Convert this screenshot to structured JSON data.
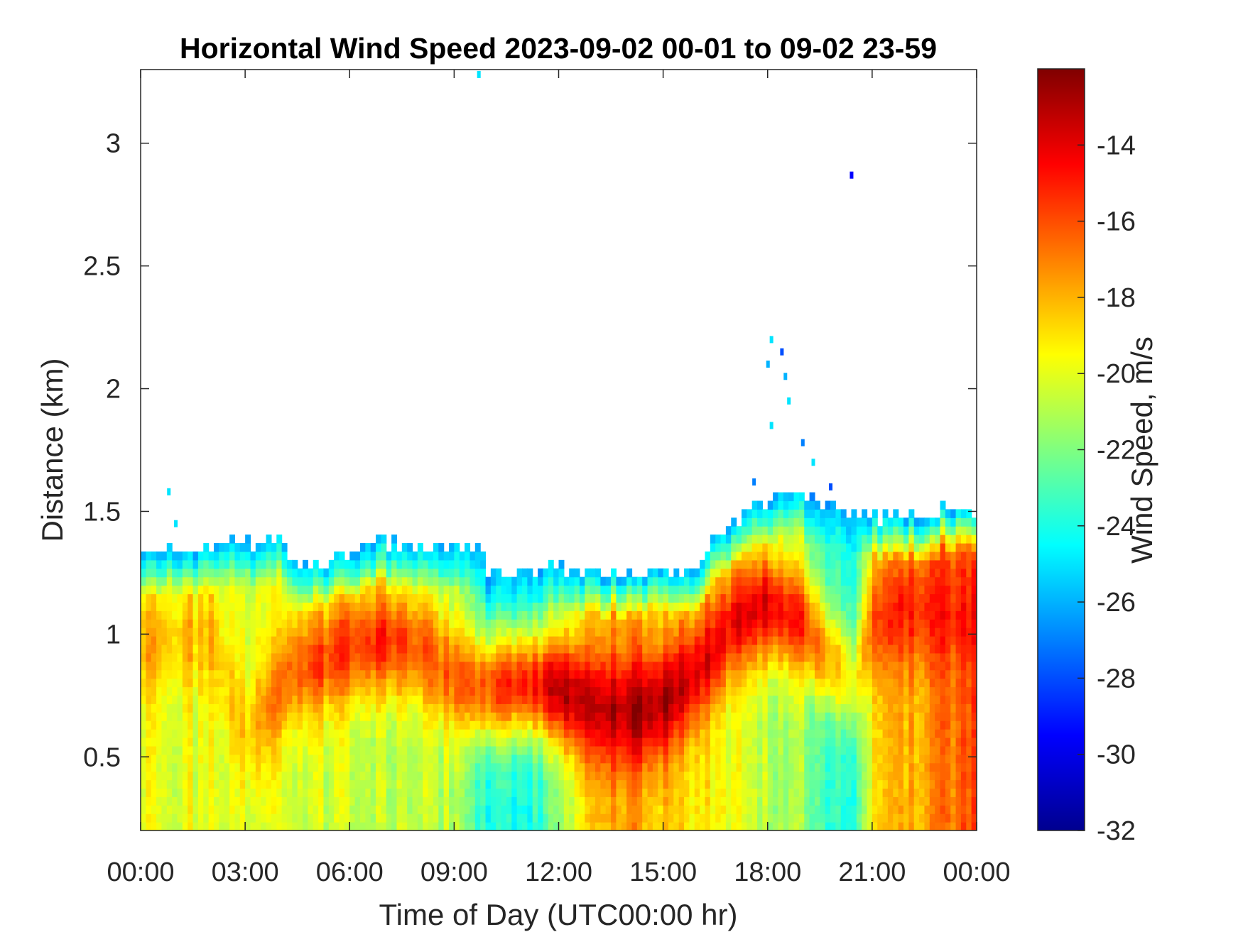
{
  "chart_data": {
    "type": "heatmap",
    "title": "Horizontal Wind Speed 2023-09-02 00-01 to 09-02 23-59",
    "xlabel": "Time of Day (UTC00:00 hr)",
    "ylabel": "Distance (km)",
    "colorbar_label": "Wind Speed, m/s",
    "x_hours_range": [
      0,
      24
    ],
    "x_ticks": [
      "00:00",
      "03:00",
      "06:00",
      "09:00",
      "12:00",
      "15:00",
      "18:00",
      "21:00",
      "00:00"
    ],
    "y_range_km": [
      0.2,
      3.3
    ],
    "y_ticks": [
      0.5,
      1,
      1.5,
      2,
      2.5,
      3
    ],
    "y_tick_labels": [
      "0.5",
      "1",
      "1.5",
      "2",
      "2.5",
      "3"
    ],
    "colorbar_range": [
      -32,
      -12
    ],
    "colorbar_ticks": [
      -32,
      -30,
      -28,
      -26,
      -24,
      -22,
      -20,
      -18,
      -16,
      -14
    ],
    "colorbar_tick_labels": [
      "-32",
      "-30",
      "-28",
      "-26",
      "-24",
      "-22",
      "-20",
      "-18",
      "-16",
      "-14"
    ],
    "colormap": "jet",
    "colormap_stops": [
      "#00008f",
      "#0000ff",
      "#00ffff",
      "#ffff00",
      "#ff0000",
      "#800000"
    ],
    "grid": false,
    "data_top_km": {
      "hours": [
        0,
        1,
        2,
        3,
        4,
        4.5,
        5,
        6,
        7,
        8,
        9,
        9.7,
        10,
        11,
        12,
        13,
        14,
        15,
        16,
        16.5,
        17,
        18,
        19,
        20,
        21,
        22,
        23,
        24
      ],
      "km": [
        1.32,
        1.35,
        1.36,
        1.37,
        1.38,
        1.3,
        1.3,
        1.33,
        1.38,
        1.36,
        1.35,
        1.36,
        1.25,
        1.27,
        1.26,
        1.25,
        1.24,
        1.27,
        1.26,
        1.4,
        1.46,
        1.55,
        1.58,
        1.5,
        1.48,
        1.48,
        1.5,
        1.5
      ]
    },
    "core_layer_km": {
      "hours": [
        0,
        2,
        3,
        4.3,
        5,
        6,
        7,
        8,
        9,
        10,
        11,
        12,
        13,
        14,
        15,
        16,
        17,
        18,
        19,
        19.5,
        20.5,
        21,
        22,
        23,
        24
      ],
      "km": [
        0.95,
        1.0,
        0.58,
        0.85,
        0.88,
        0.95,
        0.98,
        0.95,
        0.82,
        0.78,
        0.8,
        0.78,
        0.7,
        0.68,
        0.72,
        0.85,
        1.05,
        1.12,
        1.05,
        0.95,
        0.8,
        1.05,
        1.1,
        1.1,
        1.05
      ]
    },
    "core_strength_ms": {
      "hours": [
        0,
        3,
        4.5,
        6,
        7,
        8,
        9,
        11,
        12,
        13,
        14,
        15,
        16,
        17,
        18,
        19,
        19.5,
        20.5,
        21,
        22,
        24
      ],
      "ms": [
        -18,
        -18.5,
        -16,
        -15.5,
        -15,
        -16.5,
        -16.5,
        -15.5,
        -13.5,
        -13,
        -12.8,
        -12.8,
        -14,
        -14.5,
        -14,
        -15,
        -17,
        -20,
        -16,
        -15,
        -15
      ]
    },
    "near_surface_ms": {
      "hours": [
        0,
        3,
        6,
        9,
        10,
        11,
        12,
        13,
        14,
        15,
        16,
        18,
        19,
        19.5,
        20.5,
        21,
        23,
        24
      ],
      "ms": [
        -20,
        -20,
        -20.5,
        -21,
        -24,
        -24.5,
        -22,
        -18,
        -17.5,
        -18.5,
        -19,
        -21,
        -21,
        -23,
        -24,
        -19,
        -17,
        -16
      ]
    }
  }
}
